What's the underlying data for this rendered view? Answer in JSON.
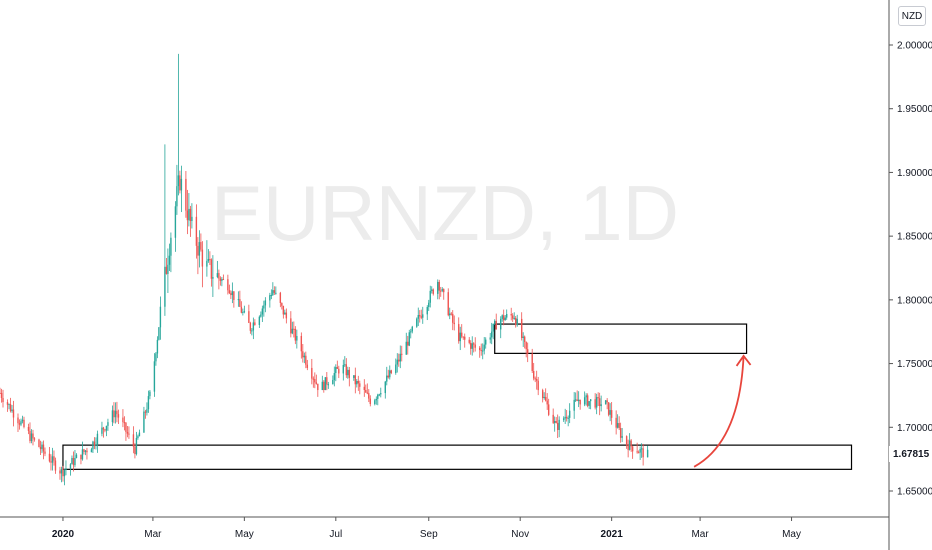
{
  "header": {
    "currency_label": "NZD"
  },
  "watermark": {
    "text": "EURNZD, 1D"
  },
  "last_price": {
    "value": 1.67815,
    "label": "1.67815"
  },
  "colors": {
    "up": "#26a69a",
    "down": "#ef5350",
    "arrow": "#e8453c",
    "axis": "#131722"
  },
  "chart_data": {
    "type": "candlestick",
    "y_ticks": [
      "1.65000",
      "1.70000",
      "1.75000",
      "1.80000",
      "1.85000",
      "1.90000",
      "1.95000",
      "2.00000"
    ],
    "x_ticks": [
      {
        "label": "2020",
        "bold": true
      },
      {
        "label": "Mar",
        "bold": false
      },
      {
        "label": "May",
        "bold": false
      },
      {
        "label": "Jul",
        "bold": false
      },
      {
        "label": "Sep",
        "bold": false
      },
      {
        "label": "Nov",
        "bold": false
      },
      {
        "label": "2021",
        "bold": true
      },
      {
        "label": "Mar",
        "bold": false
      },
      {
        "label": "May",
        "bold": false
      }
    ],
    "ylim": [
      1.62,
      2.02
    ],
    "xlim": [
      "2019-11-20",
      "2021-06-25"
    ],
    "price_path": [
      [
        "2019-11-20",
        1.727
      ],
      [
        "2019-12-10",
        1.693
      ],
      [
        "2019-12-31",
        1.665
      ],
      [
        "2020-01-20",
        1.686
      ],
      [
        "2020-02-05",
        1.713
      ],
      [
        "2020-02-18",
        1.683
      ],
      [
        "2020-02-28",
        1.725
      ],
      [
        "2020-03-05",
        1.78
      ],
      [
        "2020-03-12",
        1.845
      ],
      [
        "2020-03-19",
        1.895
      ],
      [
        "2020-03-27",
        1.855
      ],
      [
        "2020-04-06",
        1.825
      ],
      [
        "2020-04-20",
        1.812
      ],
      [
        "2020-05-05",
        1.778
      ],
      [
        "2020-05-20",
        1.808
      ],
      [
        "2020-06-05",
        1.768
      ],
      [
        "2020-06-20",
        1.73
      ],
      [
        "2020-07-05",
        1.748
      ],
      [
        "2020-07-25",
        1.72
      ],
      [
        "2020-08-10",
        1.748
      ],
      [
        "2020-08-25",
        1.785
      ],
      [
        "2020-09-07",
        1.815
      ],
      [
        "2020-09-20",
        1.772
      ],
      [
        "2020-10-05",
        1.76
      ],
      [
        "2020-10-18",
        1.785
      ],
      [
        "2020-10-28",
        1.788
      ],
      [
        "2020-11-10",
        1.742
      ],
      [
        "2020-11-25",
        1.7
      ],
      [
        "2020-12-10",
        1.722
      ],
      [
        "2020-12-28",
        1.718
      ],
      [
        "2021-01-10",
        1.688
      ],
      [
        "2021-01-25",
        1.678
      ]
    ],
    "spikes": [
      {
        "date": "2020-03-18",
        "high": 1.993
      },
      {
        "date": "2020-03-09",
        "high": 1.922
      }
    ],
    "zones": [
      {
        "name": "support-zone",
        "x0": "2020-01-01",
        "x1": "2021-06-10",
        "y_top": 1.686,
        "y_bottom": 1.667
      },
      {
        "name": "resistance-zone",
        "x0": "2020-10-15",
        "x1": "2021-04-01",
        "y_top": 1.781,
        "y_bottom": 1.758
      }
    ],
    "projection_arrow": {
      "from": [
        "2021-02-25",
        1.669
      ],
      "to": [
        "2021-03-30",
        1.756
      ]
    }
  }
}
